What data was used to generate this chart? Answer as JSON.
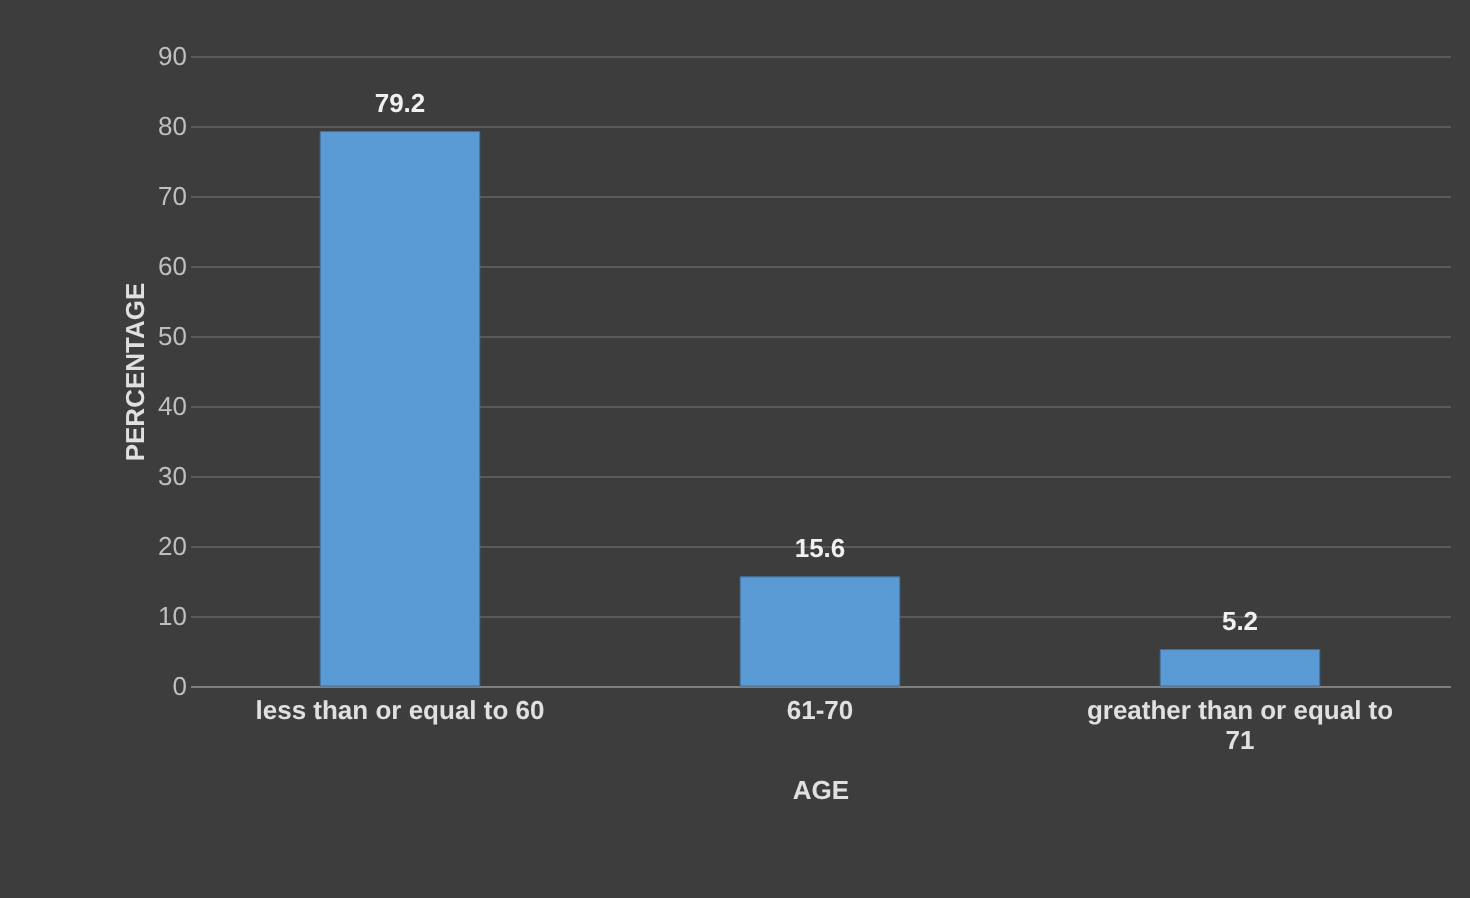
{
  "chart_data": {
    "type": "bar",
    "xlabel": "AGE",
    "ylabel": "PERCENTAGE",
    "categories": [
      "less than or equal to 60",
      "61-70",
      "greather than or equal to 71"
    ],
    "values": [
      79.2,
      15.6,
      5.2
    ],
    "color": "#5b9bd5",
    "ylim": [
      0,
      90
    ],
    "yticks": [
      0,
      10,
      20,
      30,
      40,
      50,
      60,
      70,
      80,
      90
    ],
    "grid": "y",
    "data_labels": true
  }
}
